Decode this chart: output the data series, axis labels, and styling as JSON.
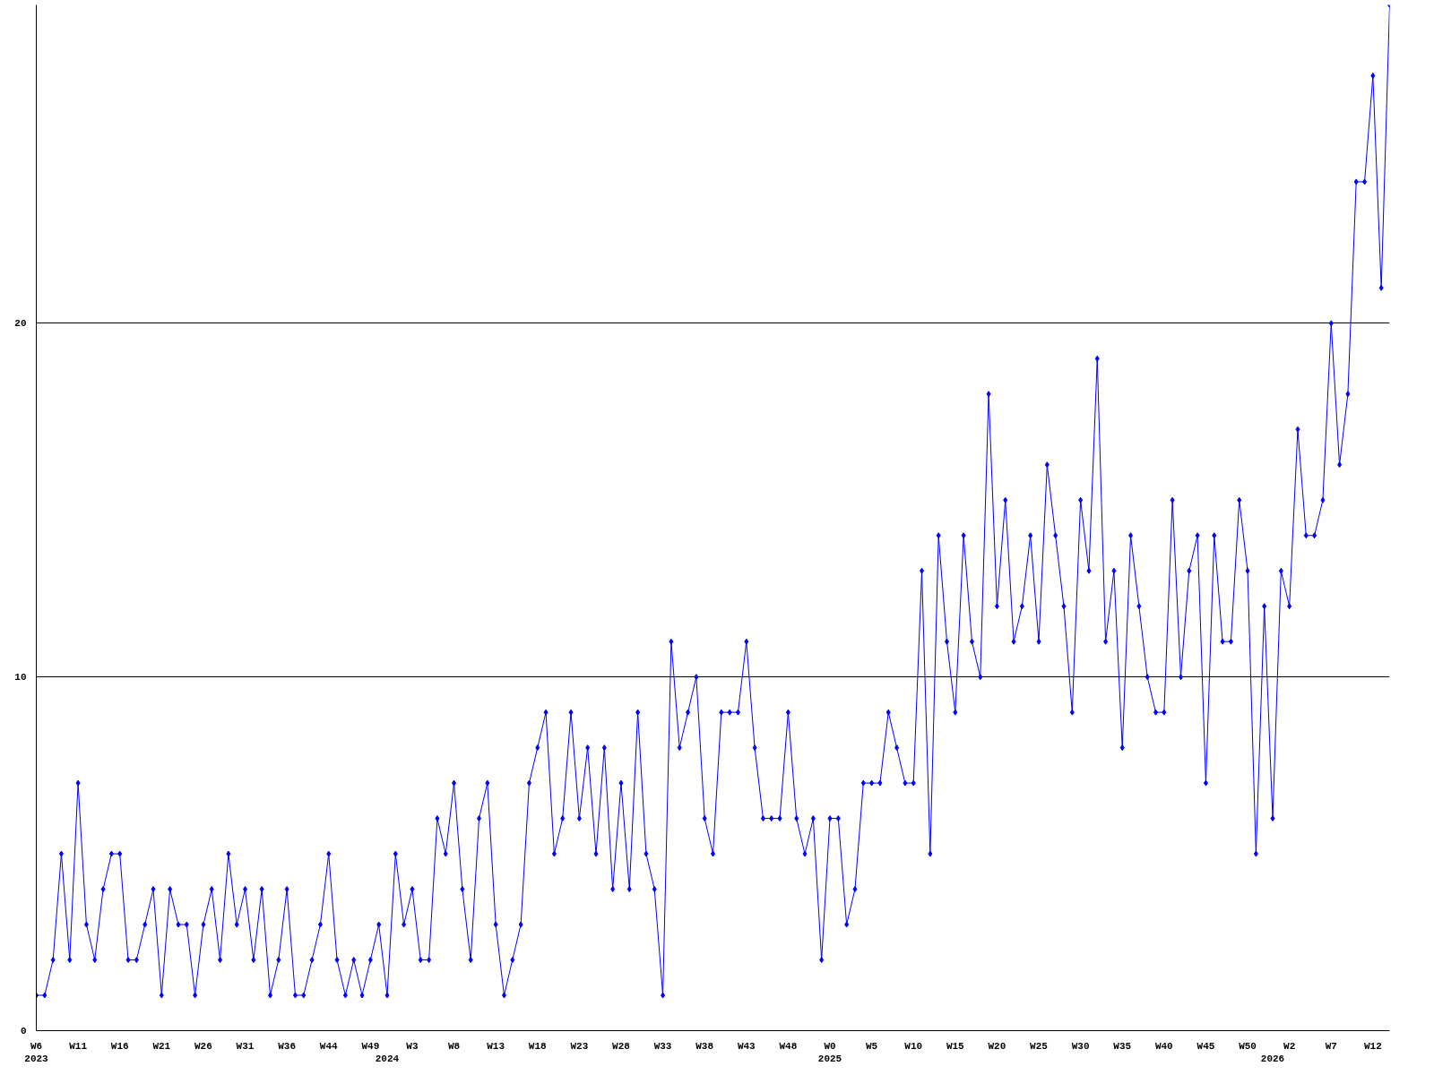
{
  "chart_data": {
    "type": "line",
    "categories": [
      "W6\n2023",
      null,
      null,
      null,
      null,
      "W11",
      null,
      null,
      null,
      null,
      "W16",
      null,
      null,
      null,
      null,
      "W21",
      null,
      null,
      null,
      null,
      "W26",
      null,
      null,
      null,
      null,
      "W31",
      null,
      null,
      null,
      null,
      "W36",
      null,
      null,
      null,
      null,
      "W44",
      null,
      null,
      null,
      null,
      "W49",
      null,
      "\n2024",
      null,
      null,
      "W3",
      null,
      null,
      null,
      null,
      "W8",
      null,
      null,
      null,
      null,
      "W13",
      null,
      null,
      null,
      null,
      "W18",
      null,
      null,
      null,
      null,
      "W23",
      null,
      null,
      null,
      null,
      "W28",
      null,
      null,
      null,
      null,
      "W33",
      null,
      null,
      null,
      null,
      "W38",
      null,
      null,
      null,
      null,
      "W43",
      null,
      null,
      null,
      null,
      "W48",
      null,
      null,
      null,
      null,
      "W0\n2025",
      null,
      null,
      null,
      null,
      "W5",
      null,
      null,
      null,
      null,
      "W10",
      null,
      null,
      null,
      null,
      "W15",
      null,
      null,
      null,
      null,
      "W20",
      null,
      null,
      null,
      null,
      "W25",
      null,
      null,
      null,
      null,
      "W30",
      null,
      null,
      null,
      null,
      "W35",
      null,
      null,
      null,
      null,
      "W40",
      null,
      null,
      null,
      null,
      "W45",
      null,
      null,
      null,
      null,
      "W50",
      null,
      null,
      "\n2026",
      null,
      "W2",
      null,
      null,
      null,
      null,
      "W7",
      null,
      null,
      null,
      null,
      "W12",
      null,
      null
    ],
    "series": [
      {
        "color": "#0000ff",
        "values": [
          1,
          1,
          2,
          5,
          2,
          7,
          3,
          2,
          4,
          5,
          5,
          2,
          2,
          3,
          4,
          1,
          4,
          3,
          3,
          1,
          3,
          4,
          2,
          5,
          3,
          4,
          2,
          4,
          1,
          2,
          4,
          1,
          1,
          2,
          3,
          5,
          2,
          1,
          2,
          1,
          2,
          3,
          1,
          5,
          3,
          4,
          2,
          2,
          6,
          5,
          7,
          4,
          2,
          6,
          7,
          3,
          1,
          2,
          3,
          7,
          8,
          9,
          5,
          6,
          9,
          6,
          8,
          5,
          8,
          4,
          7,
          4,
          9,
          5,
          4,
          1,
          11,
          8,
          9,
          10,
          6,
          5,
          9,
          9,
          9,
          11,
          8,
          6,
          6,
          6,
          9,
          6,
          5,
          6,
          2,
          6,
          6,
          3,
          4,
          7,
          7,
          7,
          9,
          8,
          7,
          7,
          13,
          5,
          14,
          11,
          9,
          14,
          11,
          10,
          18,
          12,
          15,
          11,
          12,
          14,
          11,
          16,
          14,
          12,
          9,
          15,
          13,
          19,
          11,
          13,
          8,
          14,
          12,
          10,
          9,
          9,
          15,
          10,
          13,
          14,
          7,
          14,
          11,
          11,
          15,
          13,
          5,
          12,
          6,
          13,
          12,
          17,
          14,
          14,
          15,
          20,
          16,
          18,
          24,
          24,
          27,
          21,
          29
        ]
      }
    ],
    "ylim": [
      0,
      29
    ],
    "yticks": [
      0,
      10,
      20
    ],
    "grid": "y",
    "marker": "diamond",
    "line_style": "solid"
  }
}
